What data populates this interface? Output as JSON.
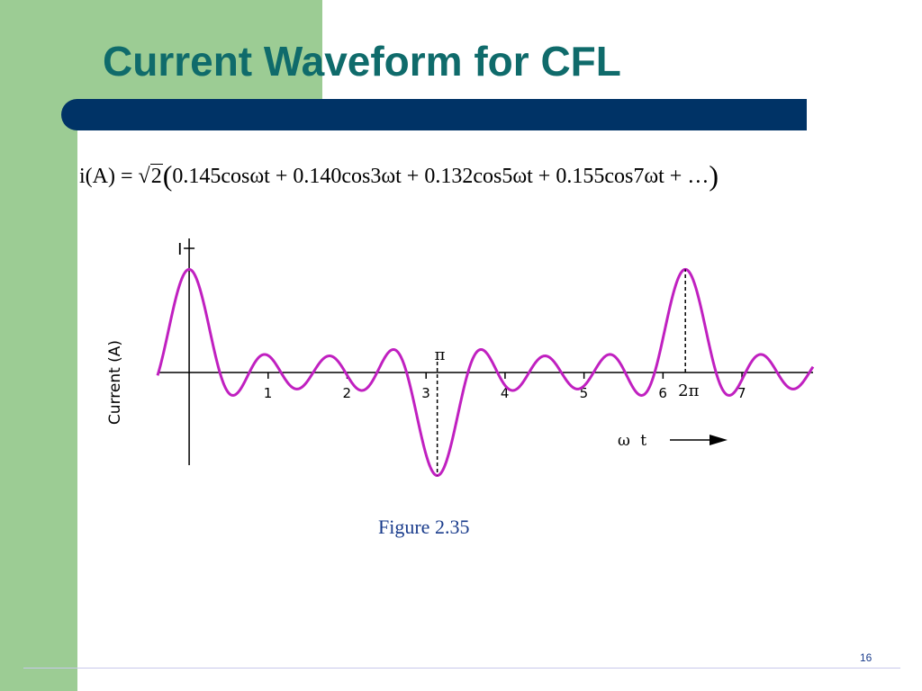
{
  "slide": {
    "title": "Current Waveform for CFL",
    "equation": {
      "lhs": "i(A) = ",
      "sqrt_symbol": "√",
      "radicand": "2",
      "open_paren": "(",
      "terms": "0.145cosωt + 0.140cos3ωt + 0.132cos5ωt + 0.155cos7ωt + …",
      "close_paren": ")"
    },
    "caption": "Figure 2.35",
    "page_number": "16",
    "colors": {
      "background": "#ffffff",
      "green_band": "#9ccc94",
      "title": "#0f6b6b",
      "bar": "#003366",
      "waveform": "#c020c0",
      "caption": "#1a3c8c"
    }
  },
  "chart_data": {
    "type": "line",
    "title": "",
    "xlabel": "ω t",
    "ylabel": "Current (A)",
    "y_axis_marker": "I",
    "x_axis_arrow": "right-arrow",
    "xlim": [
      -0.4,
      7.9
    ],
    "ylim": [
      -1.1,
      1.3
    ],
    "x_ticks": [
      {
        "value": 1,
        "label": "1"
      },
      {
        "value": 2,
        "label": "2"
      },
      {
        "value": 3,
        "label": "3"
      },
      {
        "value": 4,
        "label": "4"
      },
      {
        "value": 5,
        "label": "5"
      },
      {
        "value": 6,
        "label": "6"
      },
      {
        "value": 7,
        "label": "7"
      }
    ],
    "annotations": [
      {
        "x": 3.14159,
        "label": "π",
        "position": "above",
        "guide": "dashed-vertical-to-trough"
      },
      {
        "x": 6.28318,
        "label": "2π",
        "position": "below",
        "guide": "dashed-vertical-to-peak"
      }
    ],
    "series": [
      {
        "function": "sum_k a_k cos(k ωt)",
        "harmonics": [
          {
            "order": 1,
            "amplitude": 0.145
          },
          {
            "order": 3,
            "amplitude": 0.14
          },
          {
            "order": 5,
            "amplitude": 0.132
          },
          {
            "order": 7,
            "amplitude": 0.155
          }
        ],
        "x_range": [
          -0.4,
          7.9
        ],
        "color": "#c020c0"
      }
    ],
    "grid": false,
    "legend": "none"
  }
}
